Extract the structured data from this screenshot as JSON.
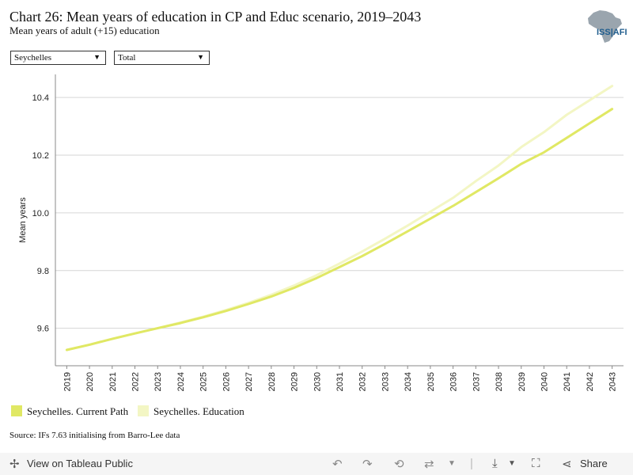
{
  "header": {
    "title": "Chart 26: Mean years of education in CP and Educ scenario, 2019–2043",
    "subtitle": "Mean years of adult (+15) education",
    "logo_text": "ISS|AFI"
  },
  "filters": {
    "country": "Seychelles",
    "group": "Total"
  },
  "chart_data": {
    "type": "line",
    "title": "Chart 26: Mean years of education in CP and Educ scenario, 2019–2043",
    "subtitle": "Mean years of adult (+15) education",
    "ylabel": "Mean years",
    "xlabel": "",
    "ylim": [
      9.47,
      10.48
    ],
    "yticks": [
      9.6,
      9.8,
      10.0,
      10.2,
      10.4
    ],
    "grid": true,
    "legend_position": "bottom-left",
    "x": [
      2019,
      2020,
      2021,
      2022,
      2023,
      2024,
      2025,
      2026,
      2027,
      2028,
      2029,
      2030,
      2031,
      2032,
      2033,
      2034,
      2035,
      2036,
      2037,
      2038,
      2039,
      2040,
      2041,
      2042,
      2043
    ],
    "series": [
      {
        "name": "Seychelles. Current Path",
        "color": "#e0e864",
        "values": [
          9.525,
          9.543,
          9.563,
          9.582,
          9.6,
          9.618,
          9.638,
          9.66,
          9.684,
          9.71,
          9.74,
          9.774,
          9.812,
          9.85,
          9.892,
          9.936,
          9.98,
          10.024,
          10.072,
          10.12,
          10.17,
          10.21,
          10.26,
          10.31,
          10.36
        ]
      },
      {
        "name": "Seychelles. Education",
        "color": "#f3f6c4",
        "values": [
          9.525,
          9.543,
          9.563,
          9.582,
          9.6,
          9.62,
          9.64,
          9.663,
          9.688,
          9.716,
          9.748,
          9.784,
          9.824,
          9.866,
          9.91,
          9.956,
          10.004,
          10.052,
          10.11,
          10.164,
          10.228,
          10.28,
          10.34,
          10.39,
          10.44
        ]
      }
    ]
  },
  "legend": {
    "items": [
      {
        "label": "Seychelles. Current Path",
        "color": "#e0e864"
      },
      {
        "label": "Seychelles. Education",
        "color": "#f3f6c4"
      }
    ]
  },
  "source": "Source: IFs 7.63 initialising from Barro-Lee data",
  "footer": {
    "view_label": "View on Tableau Public",
    "share_label": "Share"
  }
}
